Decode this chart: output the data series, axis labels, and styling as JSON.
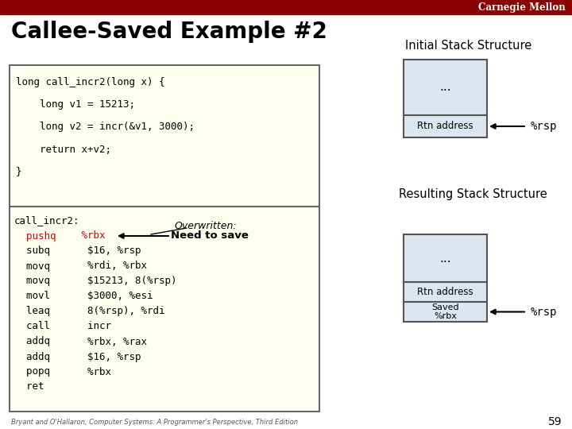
{
  "title": "Callee-Saved Example #2",
  "header_bar_color": "#8B0000",
  "header_text": "Carnegie Mellon",
  "bg_color": "#ffffff",
  "code_box_bg": "#FFFFF0",
  "code_box_border": "#666666",
  "initial_stack_label": "Initial Stack Structure",
  "resulting_stack_label": "Resulting Stack Structure",
  "stack_fill": "#dce6f1",
  "stack_border": "#555555",
  "rsp_label": "%rsp",
  "overwritten_text": "Overwritten:",
  "need_to_save_text": "Need to save",
  "footer_text": "Bryant and O'Hallaron, Computer Systems: A Programmer's Perspective, Third Edition",
  "page_number": "59",
  "c_code": [
    "long call_incr2(long x) {",
    "    long v1 = 15213;",
    "    long v2 = incr(&v1, 3000);",
    "    return x+v2;",
    "}"
  ],
  "asm_col1": [
    "call_incr2:",
    "  pushq",
    "  subq",
    "  movq",
    "  movq",
    "  movl",
    "  leaq",
    "  call",
    "  addq",
    "  addq",
    "  popq",
    "  ret"
  ],
  "asm_col2": [
    "",
    "   %rbx",
    "    $16, %rsp",
    "    %rdi, %rbx",
    "    $15213, 8(%rsp)",
    "    $3000, %esi",
    "    8(%rsp), %rdi",
    "    incr",
    "    %rbx, %rax",
    "    $16, %rsp",
    "    %rbx",
    ""
  ],
  "asm_col1_colors": [
    "#000000",
    "#cc0000",
    "#000000",
    "#000000",
    "#000000",
    "#000000",
    "#000000",
    "#000000",
    "#000000",
    "#000000",
    "#000000",
    "#000000"
  ],
  "asm_col2_colors": [
    "#000000",
    "#cc0000",
    "#000000",
    "#000000",
    "#000000",
    "#000000",
    "#000000",
    "#000000",
    "#000000",
    "#000000",
    "#000000",
    "#000000"
  ]
}
